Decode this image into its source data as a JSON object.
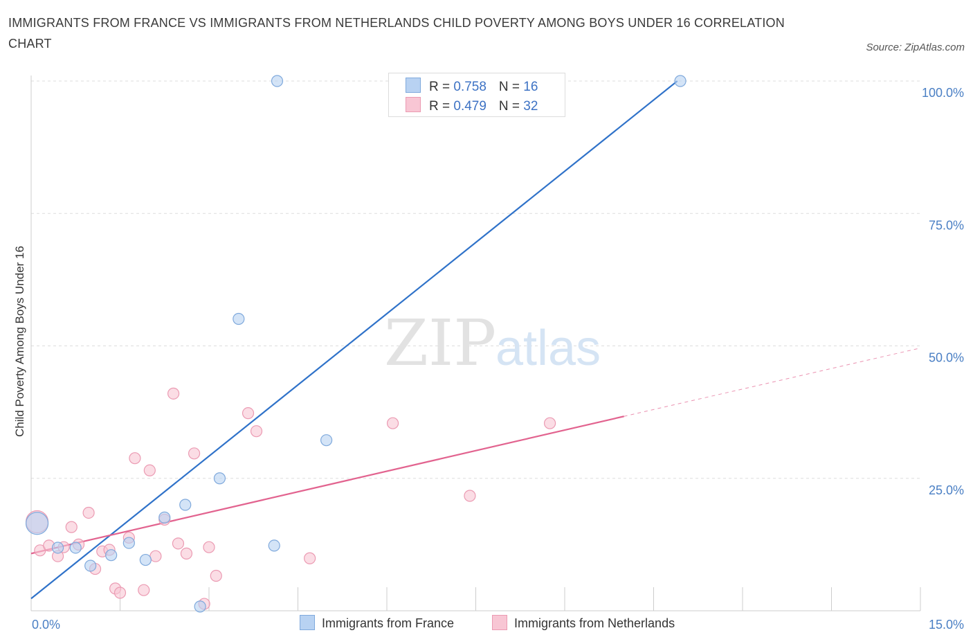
{
  "title": "IMMIGRANTS FROM FRANCE VS IMMIGRANTS FROM NETHERLANDS CHILD POVERTY AMONG BOYS UNDER 16 CORRELATION CHART",
  "source": "Source: ZipAtlas.com",
  "watermark": {
    "zip": "ZIP",
    "atlas": "atlas"
  },
  "legend": {
    "france": {
      "r_label": "R = ",
      "r_value": "0.758",
      "n_label": "N = ",
      "n_value": "16"
    },
    "netherlands": {
      "r_label": "R = ",
      "r_value": "0.479",
      "n_label": "N = ",
      "n_value": "32"
    }
  },
  "bottom_legend": {
    "france": "Immigrants from France",
    "netherlands": "Immigrants from Netherlands"
  },
  "colors": {
    "france_fill": "#b8d2f2",
    "france_stroke": "#7fa9dc",
    "france_line": "#2f72c9",
    "netherlands_fill": "#f8c6d4",
    "netherlands_stroke": "#eb9ab2",
    "netherlands_line": "#e2638f",
    "tick_text": "#4a7fc4",
    "grid": "#dddddd"
  },
  "chart_data": {
    "type": "scatter",
    "title": "IMMIGRANTS FROM FRANCE VS IMMIGRANTS FROM NETHERLANDS CHILD POVERTY AMONG BOYS UNDER 16 CORRELATION CHART",
    "xlabel": "",
    "ylabel": "Child Poverty Among Boys Under 16",
    "xlim": [
      0,
      15
    ],
    "ylim": [
      0,
      100
    ],
    "x_ticks": [
      "0.0%",
      "15.0%"
    ],
    "y_ticks": [
      "100.0%",
      "75.0%",
      "50.0%",
      "25.0%"
    ],
    "grid": true,
    "legend_position": "top-center",
    "series": [
      {
        "name": "Immigrants from France",
        "R": 0.758,
        "N": 16,
        "trend": {
          "x0": 0,
          "y0": 2.3,
          "x1": 10.9,
          "y1": 100,
          "dashed_to": null
        },
        "points": [
          {
            "x": 0.1,
            "y": 16.5,
            "size": "large"
          },
          {
            "x": 0.45,
            "y": 11.9
          },
          {
            "x": 0.75,
            "y": 11.9
          },
          {
            "x": 1.0,
            "y": 8.5
          },
          {
            "x": 1.35,
            "y": 10.5
          },
          {
            "x": 1.65,
            "y": 12.8
          },
          {
            "x": 1.93,
            "y": 9.6
          },
          {
            "x": 2.25,
            "y": 17.6
          },
          {
            "x": 2.6,
            "y": 20.0
          },
          {
            "x": 2.85,
            "y": 0.8
          },
          {
            "x": 3.18,
            "y": 25.0
          },
          {
            "x": 3.5,
            "y": 55.1
          },
          {
            "x": 4.15,
            "y": 100.0
          },
          {
            "x": 4.1,
            "y": 12.3
          },
          {
            "x": 4.98,
            "y": 32.2
          },
          {
            "x": 10.95,
            "y": 100.0
          }
        ]
      },
      {
        "name": "Immigrants from Netherlands",
        "R": 0.479,
        "N": 32,
        "trend": {
          "x0": 0,
          "y0": 10.8,
          "x1": 10.0,
          "y1": 36.7,
          "dashed_to": {
            "x": 15,
            "y": 49.6
          }
        },
        "points": [
          {
            "x": 0.1,
            "y": 16.8,
            "size": "large"
          },
          {
            "x": 0.15,
            "y": 11.4
          },
          {
            "x": 0.3,
            "y": 12.3
          },
          {
            "x": 0.45,
            "y": 10.3
          },
          {
            "x": 0.55,
            "y": 12.0
          },
          {
            "x": 0.68,
            "y": 15.8
          },
          {
            "x": 0.8,
            "y": 12.5
          },
          {
            "x": 0.97,
            "y": 18.5
          },
          {
            "x": 1.08,
            "y": 7.9
          },
          {
            "x": 1.2,
            "y": 11.2
          },
          {
            "x": 1.32,
            "y": 11.5
          },
          {
            "x": 1.42,
            "y": 4.2
          },
          {
            "x": 1.5,
            "y": 3.4
          },
          {
            "x": 1.65,
            "y": 13.8
          },
          {
            "x": 1.75,
            "y": 28.8
          },
          {
            "x": 1.9,
            "y": 3.9
          },
          {
            "x": 2.0,
            "y": 26.5
          },
          {
            "x": 2.1,
            "y": 10.3
          },
          {
            "x": 2.25,
            "y": 17.2
          },
          {
            "x": 2.4,
            "y": 41.0
          },
          {
            "x": 2.48,
            "y": 12.7
          },
          {
            "x": 2.62,
            "y": 10.8
          },
          {
            "x": 2.75,
            "y": 29.7
          },
          {
            "x": 2.92,
            "y": 1.3
          },
          {
            "x": 3.0,
            "y": 12.0
          },
          {
            "x": 3.12,
            "y": 6.6
          },
          {
            "x": 3.66,
            "y": 37.3
          },
          {
            "x": 3.8,
            "y": 33.9
          },
          {
            "x": 4.7,
            "y": 9.9
          },
          {
            "x": 6.1,
            "y": 35.4
          },
          {
            "x": 7.4,
            "y": 21.7
          },
          {
            "x": 8.75,
            "y": 35.4
          }
        ]
      }
    ]
  }
}
